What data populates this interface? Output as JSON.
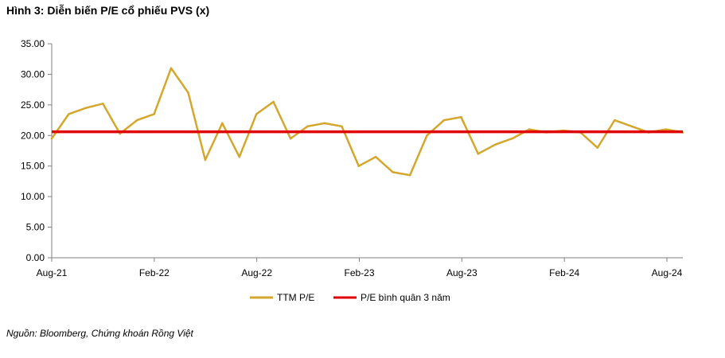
{
  "title": "Hình 3: Diễn biến P/E cổ phiếu PVS (x)",
  "source": "Nguồn: Bloomberg, Chứng khoán Rồng Việt",
  "colors": {
    "ttm_pe": "#D4A72C",
    "avg_pe": "#E00000",
    "axis": "#808080",
    "grid": "#D9D9D9"
  },
  "chart_data": {
    "type": "line",
    "title": "Hình 3: Diễn biến P/E cổ phiếu PVS (x)",
    "xlabel": "",
    "ylabel": "",
    "ylim": [
      0,
      35
    ],
    "yticks": [
      "0.00",
      "5.00",
      "10.00",
      "15.00",
      "20.00",
      "25.00",
      "30.00",
      "35.00"
    ],
    "xticks": [
      "Aug-21",
      "Feb-22",
      "Aug-22",
      "Feb-23",
      "Aug-23",
      "Feb-24",
      "Aug-24"
    ],
    "grid": false,
    "legend": "bottom",
    "series": [
      {
        "name": "TTM P/E",
        "x": [
          "Aug-21",
          "Sep-21",
          "Oct-21",
          "Nov-21",
          "Dec-21",
          "Jan-22",
          "Feb-22",
          "Mar-22",
          "Apr-22",
          "May-22",
          "Jun-22",
          "Jul-22",
          "Aug-22",
          "Sep-22",
          "Oct-22",
          "Nov-22",
          "Dec-22",
          "Jan-23",
          "Feb-23",
          "Mar-23",
          "Apr-23",
          "May-23",
          "Jun-23",
          "Jul-23",
          "Aug-23",
          "Sep-23",
          "Oct-23",
          "Nov-23",
          "Dec-23",
          "Jan-24",
          "Feb-24",
          "Mar-24",
          "Apr-24",
          "May-24",
          "Jun-24",
          "Jul-24",
          "Aug-24",
          "Sep-24"
        ],
        "values": [
          19.5,
          23.5,
          24.5,
          25.2,
          20.3,
          22.5,
          23.5,
          31.0,
          27.0,
          16.0,
          22.0,
          16.5,
          23.5,
          25.5,
          19.5,
          21.5,
          22.0,
          21.5,
          15.0,
          16.5,
          14.0,
          13.5,
          20.0,
          22.5,
          23.0,
          17.0,
          18.5,
          19.5,
          21.0,
          20.5,
          20.8,
          20.5,
          18.0,
          22.5,
          21.5,
          20.5,
          21.0,
          20.5
        ]
      },
      {
        "name": "P/E bình quân 3 năm",
        "x": [
          "Aug-21",
          "Sep-24"
        ],
        "values": [
          20.6,
          20.6
        ]
      }
    ]
  }
}
